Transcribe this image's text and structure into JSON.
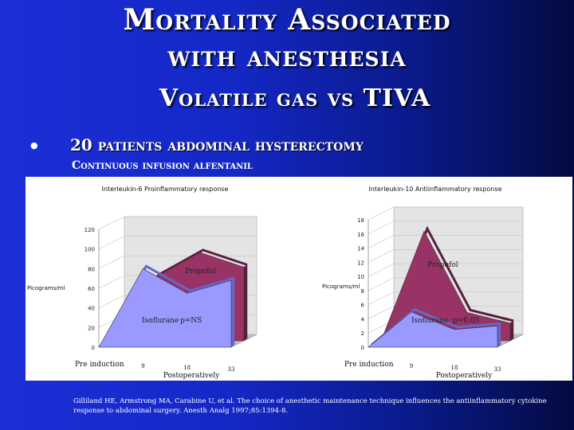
{
  "slide": {
    "title_line1": "Mortality Associated",
    "title_line2": "with anesthesia",
    "title_line3": "Volatile gas vs TIVA",
    "bullet": "20 patients abdominal hysterectomy",
    "subtext": "Continuous infusion alfentanil",
    "citation": "Gilliland HE, Armstrong MA, Carabine U, et al. The choice of anesthetic maintenance technique influences the antiinflammatory cytokine response to abdominal surgery. Anesth Analg 1997;85:1394-8."
  },
  "chart_data": [
    {
      "type": "area",
      "title": "Interleukin-6 Proinflammatory response",
      "ylabel": "Picograms/ml",
      "xlabel": "Postoperatively",
      "x": [
        "Pre induction",
        "9",
        "18",
        "33"
      ],
      "yticks": [
        "0",
        "20",
        "40",
        "60",
        "80",
        "100",
        "120"
      ],
      "ylim": [
        0,
        120
      ],
      "series": [
        {
          "name": "Propofol",
          "values": [
            0,
            65,
            90,
            75
          ],
          "color": "#993366"
        },
        {
          "name": "Isoflurane",
          "values": [
            0,
            80,
            55,
            68
          ],
          "color": "#9999ff"
        }
      ],
      "annotations": [
        "p=NS"
      ]
    },
    {
      "type": "area",
      "title": "Interleukin-10 Antiinflammatory response",
      "ylabel": "Picograms/ml",
      "xlabel": "Postoperatively",
      "x": [
        "Pre induction",
        "9",
        "18",
        "33"
      ],
      "yticks": [
        "0",
        "2",
        "4",
        "6",
        "8",
        "10",
        "12",
        "14",
        "16",
        "18"
      ],
      "ylim": [
        0,
        18
      ],
      "series": [
        {
          "name": "Propofol",
          "values": [
            0,
            15.5,
            4,
            2.5
          ],
          "color": "#993366"
        },
        {
          "name": "Isoflurane",
          "values": [
            0,
            5,
            2.5,
            3
          ],
          "color": "#9999ff"
        }
      ],
      "annotations": [
        "p=0.05"
      ]
    }
  ]
}
